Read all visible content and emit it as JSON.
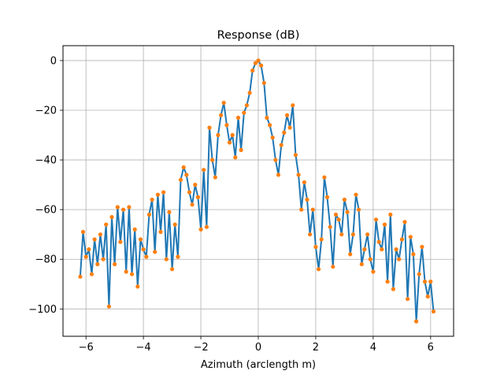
{
  "chart_data": {
    "type": "scatter",
    "style": "line-with-dot-markers",
    "title": "Response (dB)",
    "xlabel": "Azimuth (arclength m)",
    "ylabel": "",
    "xlim": [
      -6.8,
      6.8
    ],
    "ylim": [
      -111,
      6
    ],
    "grid": true,
    "x_ticks": [
      -6,
      -4,
      -2,
      0,
      2,
      4,
      6
    ],
    "x_tick_labels": [
      "−6",
      "−4",
      "−2",
      "0",
      "2",
      "4",
      "6"
    ],
    "y_ticks": [
      0,
      -20,
      -40,
      -60,
      -80,
      -100
    ],
    "y_tick_labels": [
      "0",
      "−20",
      "−40",
      "−60",
      "−80",
      "−100"
    ],
    "series": [
      {
        "color": "#1f77b4",
        "marker_color": "#ff7f0e",
        "x": [
          -6.2,
          -6.1,
          -6.0,
          -5.9,
          -5.8,
          -5.7,
          -5.6,
          -5.5,
          -5.4,
          -5.3,
          -5.2,
          -5.1,
          -5.0,
          -4.9,
          -4.8,
          -4.7,
          -4.6,
          -4.5,
          -4.4,
          -4.3,
          -4.2,
          -4.1,
          -4.0,
          -3.9,
          -3.8,
          -3.7,
          -3.6,
          -3.5,
          -3.4,
          -3.3,
          -3.2,
          -3.1,
          -3.0,
          -2.9,
          -2.8,
          -2.7,
          -2.6,
          -2.5,
          -2.4,
          -2.3,
          -2.2,
          -2.1,
          -2.0,
          -1.9,
          -1.8,
          -1.7,
          -1.6,
          -1.5,
          -1.4,
          -1.3,
          -1.2,
          -1.1,
          -1.0,
          -0.9,
          -0.8,
          -0.7,
          -0.6,
          -0.5,
          -0.4,
          -0.3,
          -0.2,
          -0.1,
          0.0,
          0.1,
          0.2,
          0.3,
          0.4,
          0.5,
          0.6,
          0.7,
          0.8,
          0.9,
          1.0,
          1.1,
          1.2,
          1.3,
          1.4,
          1.5,
          1.6,
          1.7,
          1.8,
          1.9,
          2.0,
          2.1,
          2.2,
          2.3,
          2.4,
          2.5,
          2.6,
          2.7,
          2.8,
          2.9,
          3.0,
          3.1,
          3.2,
          3.3,
          3.4,
          3.5,
          3.6,
          3.7,
          3.8,
          3.9,
          4.0,
          4.1,
          4.2,
          4.3,
          4.4,
          4.5,
          4.6,
          4.7,
          4.8,
          4.9,
          5.0,
          5.1,
          5.2,
          5.3,
          5.4,
          5.5,
          5.6,
          5.7,
          5.8,
          5.9,
          6.0,
          6.1
        ],
        "values": [
          -87,
          -69,
          -79,
          -76,
          -86,
          -72,
          -82,
          -70,
          -80,
          -66,
          -99,
          -63,
          -82,
          -59,
          -73,
          -60,
          -85,
          -59,
          -86,
          -68,
          -91,
          -72,
          -76,
          -79,
          -62,
          -56,
          -77,
          -54,
          -69,
          -53,
          -80,
          -61,
          -84,
          -66,
          -79,
          -48,
          -43,
          -46,
          -53,
          -58,
          -50,
          -55,
          -68,
          -44,
          -67,
          -27,
          -40,
          -47,
          -30,
          -22,
          -17,
          -26,
          -33,
          -30,
          -39,
          -23,
          -36,
          -21,
          -18,
          -13,
          -4,
          -1,
          0,
          -2,
          -9,
          -23,
          -26,
          -31,
          -40,
          -46,
          -34,
          -29,
          -22,
          -27,
          -18,
          -38,
          -46,
          -60,
          -49,
          -56,
          -70,
          -60,
          -75,
          -84,
          -72,
          -47,
          -55,
          -67,
          -83,
          -62,
          -64,
          -70,
          -56,
          -61,
          -78,
          -70,
          -54,
          -60,
          -82,
          -76,
          -70,
          -80,
          -85,
          -64,
          -73,
          -76,
          -66,
          -89,
          -62,
          -92,
          -76,
          -80,
          -72,
          -65,
          -96,
          -71,
          -78,
          -105,
          -86,
          -75,
          -89,
          -95,
          -89,
          -101
        ]
      }
    ]
  }
}
